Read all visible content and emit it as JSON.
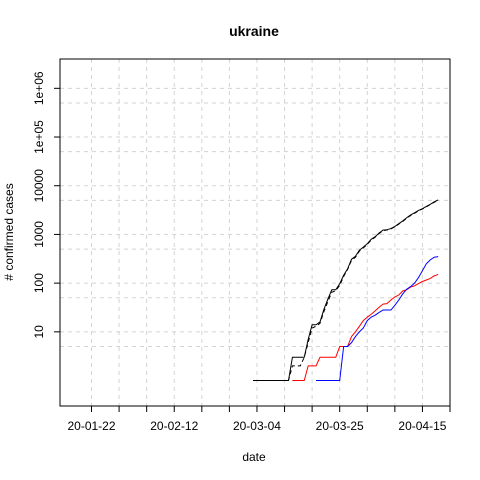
{
  "chart_data": {
    "type": "line",
    "title": "ukraine",
    "xlabel": "date",
    "ylabel": "# confirmed cases",
    "y_scale": "log",
    "xlim": [
      "2020-01-14",
      "2020-04-22"
    ],
    "ylim": [
      0.3,
      4000000
    ],
    "x_ticks": [
      {
        "date": "2020-01-22",
        "label": "20-01-22"
      },
      {
        "date": "2020-02-12",
        "label": "20-02-12"
      },
      {
        "date": "2020-03-04",
        "label": "20-03-04"
      },
      {
        "date": "2020-03-25",
        "label": "20-03-25"
      },
      {
        "date": "2020-04-15",
        "label": "20-04-15"
      }
    ],
    "x_minor_ticks": [
      "2020-01-29",
      "2020-02-05",
      "2020-02-19",
      "2020-02-26",
      "2020-03-11",
      "2020-03-18",
      "2020-04-01",
      "2020-04-08",
      "2020-04-22"
    ],
    "y_ticks": [
      {
        "value": 10,
        "label": "10"
      },
      {
        "value": 100,
        "label": "100"
      },
      {
        "value": 1000,
        "label": "1000"
      },
      {
        "value": 10000,
        "label": "10000"
      },
      {
        "value": 100000,
        "label": "1e+05"
      },
      {
        "value": 1000000,
        "label": "1e+06"
      }
    ],
    "y_grid_minor": [
      5,
      50,
      500,
      5000,
      50000,
      500000
    ],
    "grid": true,
    "series": [
      {
        "color": "#000000",
        "dash": "solid",
        "x": [
          "2020-03-03",
          "2020-03-04",
          "2020-03-05",
          "2020-03-06",
          "2020-03-07",
          "2020-03-08",
          "2020-03-09",
          "2020-03-10",
          "2020-03-11",
          "2020-03-12",
          "2020-03-13",
          "2020-03-14",
          "2020-03-15",
          "2020-03-16",
          "2020-03-17",
          "2020-03-18",
          "2020-03-19",
          "2020-03-20",
          "2020-03-21",
          "2020-03-22",
          "2020-03-23",
          "2020-03-24",
          "2020-03-25",
          "2020-03-26",
          "2020-03-27",
          "2020-03-28",
          "2020-03-29",
          "2020-03-30",
          "2020-03-31",
          "2020-04-01",
          "2020-04-02",
          "2020-04-03",
          "2020-04-04",
          "2020-04-05",
          "2020-04-06",
          "2020-04-07",
          "2020-04-08",
          "2020-04-09",
          "2020-04-10",
          "2020-04-11",
          "2020-04-12",
          "2020-04-13",
          "2020-04-14",
          "2020-04-15",
          "2020-04-16",
          "2020-04-17",
          "2020-04-18",
          "2020-04-19"
        ],
        "y": [
          1,
          1,
          1,
          1,
          1,
          1,
          1,
          1,
          1,
          1,
          3,
          3,
          3,
          3,
          7,
          14,
          14,
          16,
          29,
          47,
          73,
          73,
          97,
          145,
          196,
          310,
          356,
          475,
          548,
          645,
          794,
          897,
          1072,
          1225,
          1251,
          1319,
          1462,
          1668,
          1892,
          2203,
          2511,
          2777,
          3102,
          3372,
          3764,
          4161,
          4662,
          5106
        ]
      },
      {
        "color": "#000000",
        "dash": "dashed",
        "x": [
          "2020-03-03",
          "2020-03-12",
          "2020-03-13",
          "2020-03-14",
          "2020-03-15",
          "2020-03-16",
          "2020-03-17",
          "2020-03-18",
          "2020-03-19",
          "2020-03-20",
          "2020-03-21",
          "2020-03-22",
          "2020-03-23",
          "2020-03-24",
          "2020-03-25",
          "2020-03-26",
          "2020-03-27",
          "2020-03-28",
          "2020-03-29",
          "2020-03-30",
          "2020-03-31",
          "2020-04-01",
          "2020-04-02",
          "2020-04-03",
          "2020-04-04",
          "2020-04-05",
          "2020-04-06",
          "2020-04-07",
          "2020-04-08",
          "2020-04-09",
          "2020-04-10",
          "2020-04-11",
          "2020-04-12",
          "2020-04-13",
          "2020-04-14",
          "2020-04-15",
          "2020-04-16",
          "2020-04-17",
          "2020-04-18",
          "2020-04-19"
        ],
        "y": [
          1,
          1,
          2,
          2,
          2,
          3,
          6,
          12,
          13,
          15,
          26,
          42,
          65,
          70,
          90,
          137,
          190,
          295,
          340,
          455,
          530,
          625,
          770,
          875,
          1040,
          1195,
          1230,
          1300,
          1430,
          1630,
          1850,
          2150,
          2450,
          2720,
          3050,
          3320,
          3700,
          4100,
          4580,
          5020
        ]
      },
      {
        "color": "#ff0000",
        "dash": "solid",
        "x": [
          "2020-03-13",
          "2020-03-14",
          "2020-03-15",
          "2020-03-16",
          "2020-03-17",
          "2020-03-18",
          "2020-03-19",
          "2020-03-20",
          "2020-03-21",
          "2020-03-22",
          "2020-03-23",
          "2020-03-24",
          "2020-03-25",
          "2020-03-26",
          "2020-03-27",
          "2020-03-28",
          "2020-03-29",
          "2020-03-30",
          "2020-03-31",
          "2020-04-01",
          "2020-04-02",
          "2020-04-03",
          "2020-04-04",
          "2020-04-05",
          "2020-04-06",
          "2020-04-07",
          "2020-04-08",
          "2020-04-09",
          "2020-04-10",
          "2020-04-11",
          "2020-04-12",
          "2020-04-13",
          "2020-04-14",
          "2020-04-15",
          "2020-04-16",
          "2020-04-17",
          "2020-04-18",
          "2020-04-19"
        ],
        "y": [
          1,
          1,
          1,
          1,
          2,
          2,
          2,
          3,
          3,
          3,
          3,
          3,
          5,
          5,
          5,
          8,
          10,
          13,
          17,
          20,
          23,
          27,
          32,
          37,
          38,
          45,
          52,
          57,
          69,
          73,
          83,
          88,
          98,
          108,
          116,
          125,
          141,
          151
        ]
      },
      {
        "color": "#0000ff",
        "dash": "solid",
        "x": [
          "2020-03-19",
          "2020-03-20",
          "2020-03-21",
          "2020-03-22",
          "2020-03-23",
          "2020-03-24",
          "2020-03-25",
          "2020-03-26",
          "2020-03-27",
          "2020-03-28",
          "2020-03-29",
          "2020-03-30",
          "2020-03-31",
          "2020-04-01",
          "2020-04-02",
          "2020-04-03",
          "2020-04-04",
          "2020-04-05",
          "2020-04-06",
          "2020-04-07",
          "2020-04-08",
          "2020-04-09",
          "2020-04-10",
          "2020-04-11",
          "2020-04-12",
          "2020-04-13",
          "2020-04-14",
          "2020-04-15",
          "2020-04-16",
          "2020-04-17",
          "2020-04-18",
          "2020-04-19"
        ],
        "y": [
          1,
          1,
          1,
          1,
          1,
          1,
          1,
          5,
          5,
          6,
          8,
          10,
          12,
          17,
          20,
          22,
          25,
          28,
          28,
          28,
          35,
          45,
          60,
          75,
          85,
          100,
          130,
          180,
          250,
          300,
          340,
          350
        ]
      }
    ]
  }
}
